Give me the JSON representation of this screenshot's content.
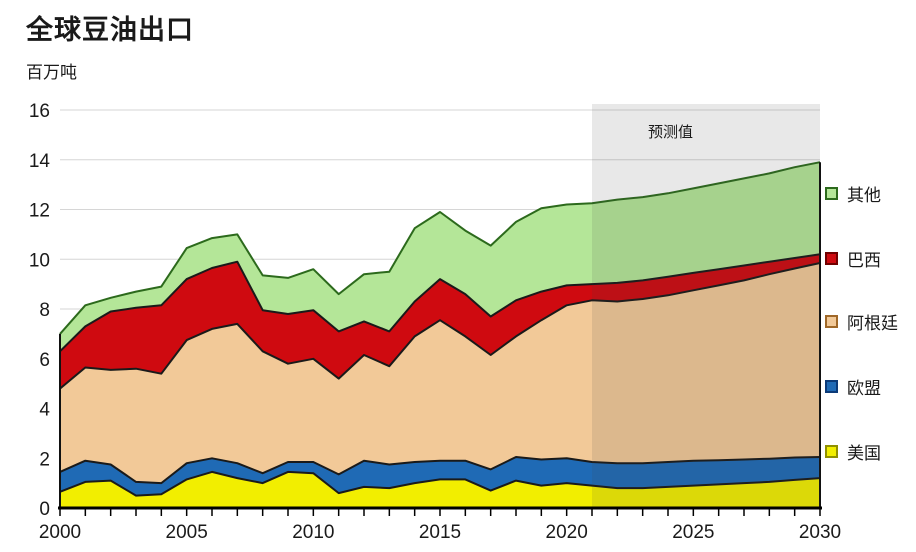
{
  "page": {
    "title": "全球豆油出口",
    "unit_label": "百万吨",
    "background": "#ffffff"
  },
  "forecast": {
    "label": "预测值",
    "start_year": 2021,
    "overlay_color": "#444444",
    "overlay_opacity": 0.12
  },
  "axes": {
    "grid_color": "#d6d6d6",
    "axis_color": "#000000",
    "tick_label_color": "#1a1a1a"
  },
  "legend": [
    {
      "label": "其他",
      "color": "#b4e698",
      "border": "#2c6a1c"
    },
    {
      "label": "巴西",
      "color": "#cf0a10",
      "border": "#700000"
    },
    {
      "label": "阿根廷",
      "color": "#f2c998",
      "border": "#a06828"
    },
    {
      "label": "欧盟",
      "color": "#1f6ab5",
      "border": "#0b3a78"
    },
    {
      "label": "美国",
      "color": "#f2ee00",
      "border": "#909000"
    }
  ],
  "chart_data": {
    "type": "area",
    "stacked": true,
    "title": "全球豆油出口",
    "ylabel": "百万吨",
    "xlabel": "",
    "ylim": [
      0,
      16
    ],
    "yticks": [
      0,
      2,
      4,
      6,
      8,
      10,
      12,
      14,
      16
    ],
    "xticks": [
      2000,
      2005,
      2010,
      2015,
      2020,
      2025,
      2030
    ],
    "grid": true,
    "legend_position": "right",
    "forecast_from": 2021,
    "x": [
      2000,
      2001,
      2002,
      2003,
      2004,
      2005,
      2006,
      2007,
      2008,
      2009,
      2010,
      2011,
      2012,
      2013,
      2014,
      2015,
      2016,
      2017,
      2018,
      2019,
      2020,
      2021,
      2022,
      2023,
      2024,
      2025,
      2026,
      2027,
      2028,
      2029,
      2030
    ],
    "series": [
      {
        "name": "美国",
        "color": "#f2ee00",
        "line": "#1a1a1a",
        "values": [
          0.65,
          1.05,
          1.1,
          0.5,
          0.55,
          1.15,
          1.45,
          1.2,
          1.0,
          1.45,
          1.4,
          0.6,
          0.85,
          0.8,
          1.0,
          1.15,
          1.15,
          0.7,
          1.1,
          0.9,
          1.0,
          0.9,
          0.8,
          0.8,
          0.85,
          0.9,
          0.95,
          1.0,
          1.05,
          1.13,
          1.2
        ]
      },
      {
        "name": "欧盟",
        "color": "#1f6ab5",
        "line": "#1a1a1a",
        "values": [
          0.8,
          0.85,
          0.65,
          0.55,
          0.45,
          0.65,
          0.55,
          0.6,
          0.4,
          0.4,
          0.45,
          0.75,
          1.05,
          0.95,
          0.85,
          0.75,
          0.75,
          0.85,
          0.95,
          1.05,
          1.0,
          0.95,
          1.0,
          1.0,
          1.0,
          1.0,
          0.97,
          0.95,
          0.93,
          0.9,
          0.85
        ]
      },
      {
        "name": "阿根廷",
        "color": "#f2c998",
        "line": "#1a1a1a",
        "values": [
          3.35,
          3.75,
          3.8,
          4.55,
          4.4,
          4.95,
          5.2,
          5.6,
          4.9,
          3.95,
          4.15,
          3.85,
          4.25,
          3.95,
          5.05,
          5.65,
          5.0,
          4.6,
          4.85,
          5.6,
          6.15,
          6.5,
          6.5,
          6.6,
          6.7,
          6.85,
          7.03,
          7.2,
          7.42,
          7.6,
          7.8
        ]
      },
      {
        "name": "巴西",
        "color": "#cf0a10",
        "line": "#1a1a1a",
        "values": [
          1.5,
          1.65,
          2.35,
          2.45,
          2.75,
          2.45,
          2.45,
          2.5,
          1.65,
          2.0,
          1.95,
          1.9,
          1.35,
          1.4,
          1.4,
          1.65,
          1.7,
          1.55,
          1.45,
          1.15,
          0.8,
          0.65,
          0.75,
          0.75,
          0.75,
          0.7,
          0.65,
          0.6,
          0.5,
          0.42,
          0.35
        ]
      },
      {
        "name": "其他",
        "color": "#b4e698",
        "line": "#2c6a1c",
        "values": [
          0.7,
          0.85,
          0.55,
          0.65,
          0.75,
          1.25,
          1.2,
          1.1,
          1.4,
          1.45,
          1.65,
          1.5,
          1.9,
          2.4,
          2.95,
          2.7,
          2.55,
          2.85,
          3.15,
          3.35,
          3.25,
          3.25,
          3.35,
          3.35,
          3.35,
          3.4,
          3.45,
          3.5,
          3.55,
          3.65,
          3.7
        ]
      }
    ]
  }
}
